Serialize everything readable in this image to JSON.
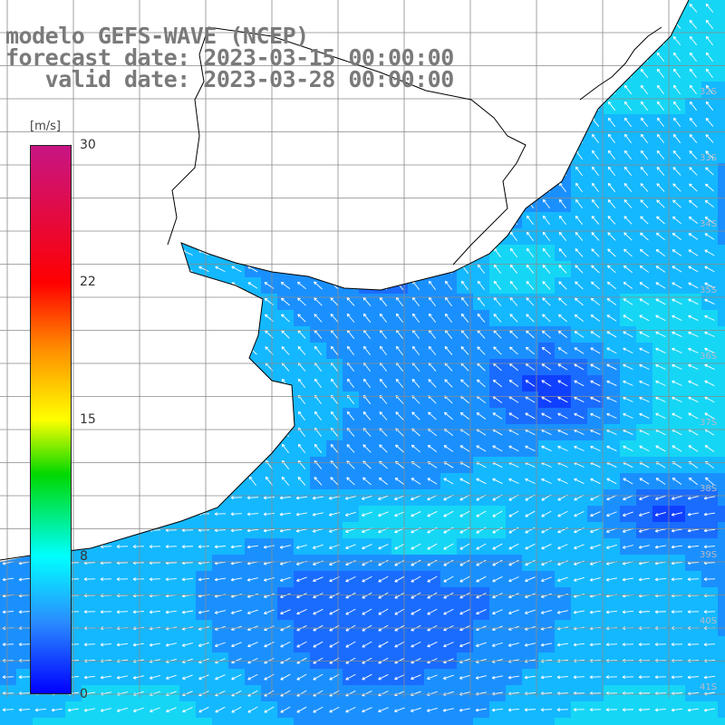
{
  "title": {
    "line1": "modelo GEFS-WAVE (NCEP)",
    "line2": "forecast date: 2023-03-15 00:00:00",
    "line3": "   valid date: 2023-03-28 00:00:00"
  },
  "colorbar": {
    "unit": "[m/s]",
    "ticks": [
      "30",
      "22",
      "15",
      "8",
      "0"
    ],
    "tick_values": [
      30,
      22,
      15,
      8,
      0
    ],
    "colors": [
      "#0000ff",
      "#2a8cff",
      "#00ffff",
      "#00d800",
      "#ffff00",
      "#ff8c00",
      "#ff0000",
      "#c71585"
    ]
  },
  "map": {
    "field": "wind speed",
    "lat_labels": [
      "32S",
      "33S",
      "34S",
      "35S",
      "36S",
      "37S",
      "38S",
      "39S",
      "40S",
      "41S"
    ],
    "colors": {
      "land": "#ffffff",
      "coast": "#000000",
      "grid": "#8a8a8a",
      "arrow": "#ffffff"
    }
  }
}
